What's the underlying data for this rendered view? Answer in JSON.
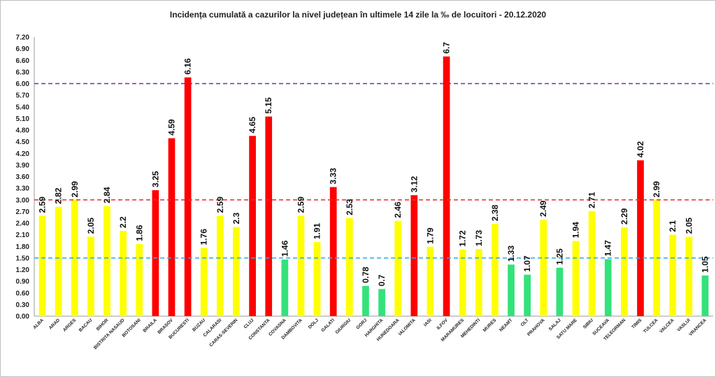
{
  "chart_data": {
    "type": "bar",
    "title": "Incidența cumulată a cazurilor la nivel județean în ultimele 14 zile la ‰ de locuitori - 20.12.2020",
    "xlabel": "",
    "ylabel": "",
    "ylim": [
      0,
      7.2
    ],
    "yticks": [
      "0.00",
      "0.30",
      "0.60",
      "0.90",
      "1.20",
      "1.50",
      "1.80",
      "2.10",
      "2.40",
      "2.70",
      "3.00",
      "3.30",
      "3.60",
      "3.90",
      "4.20",
      "4.50",
      "4.80",
      "5.10",
      "5.40",
      "5.70",
      "6.00",
      "6.30",
      "6.60",
      "6.90",
      "7.20"
    ],
    "grid": false,
    "legend": "none",
    "categories": [
      "ALBA",
      "ARAD",
      "ARGES",
      "BACAU",
      "BIHOR",
      "BISTRITA NASAUD",
      "BOTOSANI",
      "BRAILA",
      "BRASOV",
      "BUCURESTI",
      "BUZAU",
      "CALARASI",
      "CARAS-SEVERIN",
      "CLUJ",
      "CONSTANTA",
      "COVASNA",
      "DAMBOVITA",
      "DOLJ",
      "GALATI",
      "GIURGIU",
      "GORJ",
      "HARGHITA",
      "HUNEDOARA",
      "IALOMITA",
      "IASI",
      "ILFOV",
      "MARAMURES",
      "MEHEDINTI",
      "MURES",
      "NEAMT",
      "OLT",
      "PRAHOVA",
      "SALAJ",
      "SATU MARE",
      "SIBIU",
      "SUCEAVA",
      "TELEORMAN",
      "TIMIS",
      "TULCEA",
      "VALCEA",
      "VASLUI",
      "VRANCEA"
    ],
    "values": [
      2.59,
      2.82,
      2.99,
      2.05,
      2.84,
      2.2,
      1.86,
      3.25,
      4.59,
      6.16,
      1.76,
      2.59,
      2.3,
      4.65,
      5.15,
      1.46,
      2.59,
      1.91,
      3.33,
      2.53,
      0.78,
      0.7,
      2.46,
      3.12,
      1.79,
      6.7,
      1.72,
      1.73,
      2.38,
      1.33,
      1.07,
      2.49,
      1.25,
      1.94,
      2.71,
      1.47,
      2.29,
      4.02,
      2.99,
      2.1,
      2.05,
      1.05
    ],
    "data_labels": [
      "2.59",
      "2.82",
      "2.99",
      "2.05",
      "2.84",
      "2.2",
      "1.86",
      "3.25",
      "4.59",
      "6.16",
      "1.76",
      "2.59",
      "2.3",
      "4.65",
      "5.15",
      "1.46",
      "2.59",
      "1.91",
      "3.33",
      "2.53",
      "0.78",
      "0.7",
      "2.46",
      "3.12",
      "1.79",
      "6.7",
      "1.72",
      "1.73",
      "2.38",
      "1.33",
      "1.07",
      "2.49",
      "1.25",
      "1.94",
      "2.71",
      "1.47",
      "2.29",
      "4.02",
      "2.99",
      "2.1",
      "2.05",
      "1.05"
    ],
    "thresholds": [
      {
        "value": 6.0,
        "color": "#7030a0"
      },
      {
        "value": 3.0,
        "color": "#e03030"
      },
      {
        "value": 1.5,
        "color": "#30a8e0"
      }
    ],
    "colors": {
      "green": "#33e27a",
      "yellow": "#ffff00",
      "red": "#ff0000"
    }
  }
}
